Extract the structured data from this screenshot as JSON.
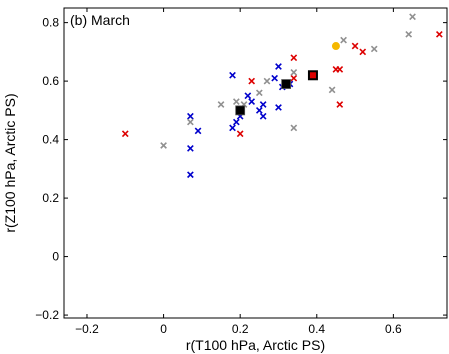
{
  "chart_data": {
    "type": "scatter",
    "panel_label": "(b) March",
    "xlabel": "r(T100 hPa, Arctic PS)",
    "ylabel": "r(Z100 hPa, Arctic PS)",
    "xlim": [
      -0.26,
      0.74
    ],
    "ylim": [
      -0.21,
      0.85
    ],
    "xticks": [
      -0.2,
      0,
      0.2,
      0.4,
      0.6
    ],
    "xtick_labels": [
      "−0.2",
      "0",
      "0.2",
      "0.4",
      "0.6"
    ],
    "yticks": [
      -0.2,
      0,
      0.2,
      0.4,
      0.6,
      0.8
    ],
    "ytick_labels": [
      "−0.2",
      "0",
      "0.2",
      "0.4",
      "0.6",
      "0.8"
    ],
    "grid": false,
    "series": [
      {
        "marker": "x",
        "color": "#0000cc",
        "points": [
          [
            0.07,
            0.48
          ],
          [
            0.09,
            0.43
          ],
          [
            0.07,
            0.37
          ],
          [
            0.07,
            0.28
          ],
          [
            0.18,
            0.62
          ],
          [
            0.19,
            0.46
          ],
          [
            0.2,
            0.48
          ],
          [
            0.18,
            0.44
          ],
          [
            0.22,
            0.55
          ],
          [
            0.23,
            0.53
          ],
          [
            0.25,
            0.5
          ],
          [
            0.26,
            0.52
          ],
          [
            0.26,
            0.48
          ],
          [
            0.29,
            0.61
          ],
          [
            0.3,
            0.65
          ],
          [
            0.31,
            0.58
          ],
          [
            0.33,
            0.59
          ],
          [
            0.3,
            0.51
          ]
        ]
      },
      {
        "marker": "x",
        "color": "#dd0000",
        "points": [
          [
            -0.1,
            0.42
          ],
          [
            0.2,
            0.42
          ],
          [
            0.23,
            0.6
          ],
          [
            0.34,
            0.68
          ],
          [
            0.34,
            0.61
          ],
          [
            0.32,
            0.59
          ],
          [
            0.45,
            0.64
          ],
          [
            0.46,
            0.52
          ],
          [
            0.46,
            0.64
          ],
          [
            0.5,
            0.72
          ],
          [
            0.52,
            0.7
          ],
          [
            0.72,
            0.76
          ]
        ]
      },
      {
        "marker": "x",
        "color": "#909090",
        "points": [
          [
            0.0,
            0.38
          ],
          [
            0.07,
            0.46
          ],
          [
            0.15,
            0.52
          ],
          [
            0.19,
            0.53
          ],
          [
            0.21,
            0.52
          ],
          [
            0.25,
            0.56
          ],
          [
            0.27,
            0.6
          ],
          [
            0.34,
            0.44
          ],
          [
            0.34,
            0.63
          ],
          [
            0.44,
            0.57
          ],
          [
            0.47,
            0.74
          ],
          [
            0.55,
            0.71
          ],
          [
            0.64,
            0.76
          ],
          [
            0.65,
            0.82
          ]
        ]
      },
      {
        "marker": "square",
        "color": "#000000",
        "points": [
          [
            0.2,
            0.5
          ],
          [
            0.32,
            0.59
          ]
        ]
      },
      {
        "marker": "square-red-fill",
        "color": "#dd0000",
        "points": [
          [
            0.39,
            0.62
          ]
        ]
      },
      {
        "marker": "circle",
        "color": "#f5b800",
        "points": [
          [
            0.45,
            0.72
          ]
        ]
      }
    ]
  }
}
